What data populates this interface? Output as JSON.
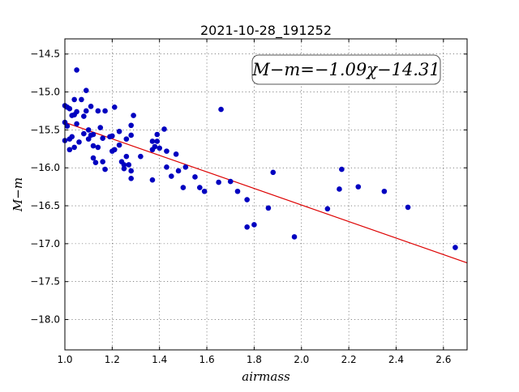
{
  "chart_data": {
    "type": "scatter",
    "title": "2021-10-28_191252",
    "xlabel": "airmass",
    "ylabel": "M−m",
    "xlim": [
      1.0,
      2.7
    ],
    "ylim": [
      -18.4,
      -14.3
    ],
    "y_inverted": true,
    "grid": true,
    "xticks": [
      1.0,
      1.2,
      1.4,
      1.6,
      1.8,
      2.0,
      2.2,
      2.4,
      2.6
    ],
    "xtick_labels": [
      "1.0",
      "1.2",
      "1.4",
      "1.6",
      "1.8",
      "2.0",
      "2.2",
      "2.4",
      "2.6"
    ],
    "yticks": [
      -14.5,
      -15.0,
      -15.5,
      -16.0,
      -16.5,
      -17.0,
      -17.5,
      -18.0
    ],
    "ytick_labels": [
      "−14.5",
      "−15.0",
      "−15.5",
      "−16.0",
      "−16.5",
      "−17.0",
      "−17.5",
      "−18.0"
    ],
    "annotation": "M−m=−1.09χ−14.31",
    "fit": {
      "slope": -1.09,
      "intercept": -14.31,
      "color": "#dd0000"
    },
    "marker_color": "#0000c0",
    "points": [
      {
        "x": 1.0,
        "y": -15.18
      },
      {
        "x": 1.0,
        "y": -15.4
      },
      {
        "x": 1.0,
        "y": -15.64
      },
      {
        "x": 1.01,
        "y": -15.2
      },
      {
        "x": 1.01,
        "y": -15.45
      },
      {
        "x": 1.02,
        "y": -15.22
      },
      {
        "x": 1.02,
        "y": -15.62
      },
      {
        "x": 1.02,
        "y": -15.76
      },
      {
        "x": 1.03,
        "y": -15.31
      },
      {
        "x": 1.03,
        "y": -15.59
      },
      {
        "x": 1.04,
        "y": -15.1
      },
      {
        "x": 1.04,
        "y": -15.3
      },
      {
        "x": 1.04,
        "y": -15.73
      },
      {
        "x": 1.05,
        "y": -14.71
      },
      {
        "x": 1.05,
        "y": -15.26
      },
      {
        "x": 1.05,
        "y": -15.42
      },
      {
        "x": 1.06,
        "y": -15.66
      },
      {
        "x": 1.07,
        "y": -15.1
      },
      {
        "x": 1.08,
        "y": -15.32
      },
      {
        "x": 1.08,
        "y": -15.55
      },
      {
        "x": 1.09,
        "y": -14.98
      },
      {
        "x": 1.09,
        "y": -15.25
      },
      {
        "x": 1.1,
        "y": -15.5
      },
      {
        "x": 1.1,
        "y": -15.62
      },
      {
        "x": 1.11,
        "y": -15.19
      },
      {
        "x": 1.11,
        "y": -15.57
      },
      {
        "x": 1.12,
        "y": -15.56
      },
      {
        "x": 1.12,
        "y": -15.71
      },
      {
        "x": 1.12,
        "y": -15.87
      },
      {
        "x": 1.13,
        "y": -15.93
      },
      {
        "x": 1.14,
        "y": -15.73
      },
      {
        "x": 1.14,
        "y": -15.25
      },
      {
        "x": 1.15,
        "y": -15.47
      },
      {
        "x": 1.16,
        "y": -15.92
      },
      {
        "x": 1.16,
        "y": -15.61
      },
      {
        "x": 1.17,
        "y": -15.25
      },
      {
        "x": 1.17,
        "y": -16.02
      },
      {
        "x": 1.19,
        "y": -15.59
      },
      {
        "x": 1.2,
        "y": -15.58
      },
      {
        "x": 1.2,
        "y": -15.78
      },
      {
        "x": 1.21,
        "y": -15.2
      },
      {
        "x": 1.21,
        "y": -15.76
      },
      {
        "x": 1.23,
        "y": -15.52
      },
      {
        "x": 1.23,
        "y": -15.7
      },
      {
        "x": 1.24,
        "y": -15.92
      },
      {
        "x": 1.25,
        "y": -15.96
      },
      {
        "x": 1.25,
        "y": -16.01
      },
      {
        "x": 1.26,
        "y": -15.85
      },
      {
        "x": 1.26,
        "y": -15.62
      },
      {
        "x": 1.27,
        "y": -15.96
      },
      {
        "x": 1.28,
        "y": -15.44
      },
      {
        "x": 1.28,
        "y": -15.57
      },
      {
        "x": 1.28,
        "y": -16.04
      },
      {
        "x": 1.28,
        "y": -16.14
      },
      {
        "x": 1.29,
        "y": -15.31
      },
      {
        "x": 1.32,
        "y": -15.85
      },
      {
        "x": 1.37,
        "y": -15.76
      },
      {
        "x": 1.37,
        "y": -15.65
      },
      {
        "x": 1.37,
        "y": -16.16
      },
      {
        "x": 1.38,
        "y": -15.72
      },
      {
        "x": 1.39,
        "y": -15.56
      },
      {
        "x": 1.39,
        "y": -15.65
      },
      {
        "x": 1.4,
        "y": -15.74
      },
      {
        "x": 1.42,
        "y": -15.49
      },
      {
        "x": 1.43,
        "y": -15.78
      },
      {
        "x": 1.43,
        "y": -15.99
      },
      {
        "x": 1.45,
        "y": -16.11
      },
      {
        "x": 1.47,
        "y": -15.82
      },
      {
        "x": 1.48,
        "y": -16.04
      },
      {
        "x": 1.5,
        "y": -16.26
      },
      {
        "x": 1.51,
        "y": -15.99
      },
      {
        "x": 1.55,
        "y": -16.12
      },
      {
        "x": 1.57,
        "y": -16.26
      },
      {
        "x": 1.59,
        "y": -16.31
      },
      {
        "x": 1.65,
        "y": -16.19
      },
      {
        "x": 1.66,
        "y": -15.23
      },
      {
        "x": 1.7,
        "y": -16.18
      },
      {
        "x": 1.73,
        "y": -16.31
      },
      {
        "x": 1.77,
        "y": -16.42
      },
      {
        "x": 1.77,
        "y": -16.78
      },
      {
        "x": 1.8,
        "y": -16.75
      },
      {
        "x": 1.86,
        "y": -16.53
      },
      {
        "x": 1.88,
        "y": -16.06
      },
      {
        "x": 1.97,
        "y": -16.91
      },
      {
        "x": 2.11,
        "y": -16.54
      },
      {
        "x": 2.16,
        "y": -16.28
      },
      {
        "x": 2.17,
        "y": -16.02
      },
      {
        "x": 2.24,
        "y": -16.25
      },
      {
        "x": 2.35,
        "y": -16.31
      },
      {
        "x": 2.45,
        "y": -16.52
      },
      {
        "x": 2.65,
        "y": -17.05
      }
    ]
  }
}
